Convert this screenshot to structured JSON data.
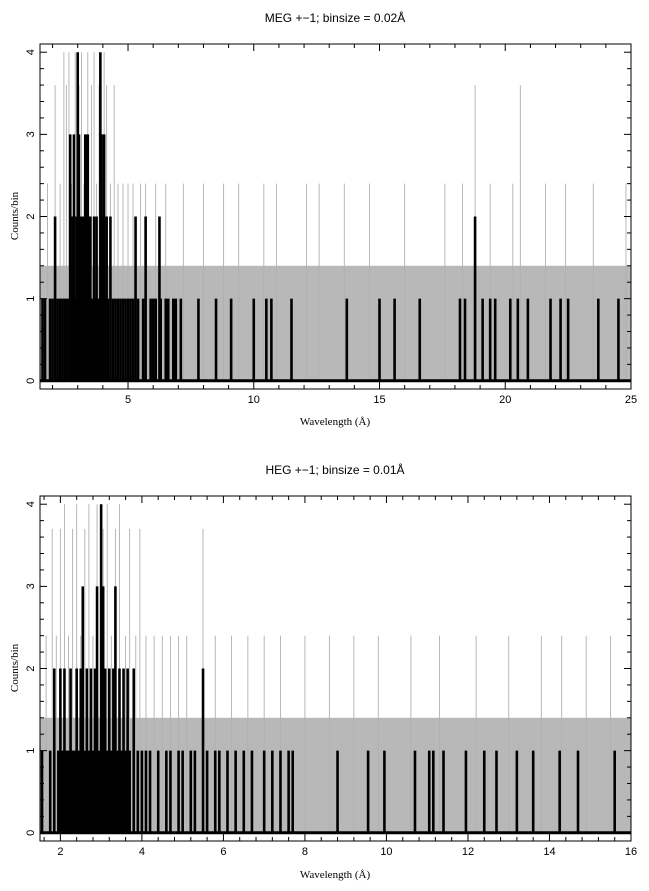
{
  "chart_data": [
    {
      "type": "line",
      "title": "MEG +−1; binsize = 0.02Å",
      "xlabel": "Wavelength (Å)",
      "ylabel": "Counts/bin",
      "xlim": [
        1.5,
        25
      ],
      "ylim": [
        -0.1,
        4.1
      ],
      "x_major_ticks": [
        5,
        10,
        15,
        20,
        25
      ],
      "y_major_ticks": [
        0,
        1,
        2,
        3,
        4
      ],
      "grid": false,
      "band": {
        "y0": 0,
        "y1": 1.4,
        "color": "#b8b8b8"
      },
      "series": [
        {
          "style": "thick-histogram",
          "color": "#000000",
          "spikes": [
            [
              1.6,
              1
            ],
            [
              1.7,
              1
            ],
            [
              1.9,
              1
            ],
            [
              2.0,
              1
            ],
            [
              2.1,
              2
            ],
            [
              2.2,
              1
            ],
            [
              2.3,
              1
            ],
            [
              2.4,
              1
            ],
            [
              2.5,
              1
            ],
            [
              2.6,
              1
            ],
            [
              2.7,
              3
            ],
            [
              2.75,
              1
            ],
            [
              2.8,
              2
            ],
            [
              2.85,
              3
            ],
            [
              2.9,
              1
            ],
            [
              2.95,
              2
            ],
            [
              3.0,
              4
            ],
            [
              3.05,
              3
            ],
            [
              3.1,
              2
            ],
            [
              3.15,
              1
            ],
            [
              3.2,
              2
            ],
            [
              3.25,
              1
            ],
            [
              3.3,
              3
            ],
            [
              3.35,
              2
            ],
            [
              3.4,
              3
            ],
            [
              3.45,
              1
            ],
            [
              3.5,
              2
            ],
            [
              3.55,
              1
            ],
            [
              3.6,
              1
            ],
            [
              3.65,
              2
            ],
            [
              3.7,
              1
            ],
            [
              3.75,
              2
            ],
            [
              3.8,
              1
            ],
            [
              3.85,
              1
            ],
            [
              3.9,
              4
            ],
            [
              3.95,
              3
            ],
            [
              4.0,
              2
            ],
            [
              4.05,
              3
            ],
            [
              4.1,
              1
            ],
            [
              4.15,
              2
            ],
            [
              4.2,
              1
            ],
            [
              4.3,
              2
            ],
            [
              4.4,
              1
            ],
            [
              4.5,
              1
            ],
            [
              4.6,
              1
            ],
            [
              4.7,
              1
            ],
            [
              4.8,
              1
            ],
            [
              4.9,
              1
            ],
            [
              5.0,
              1
            ],
            [
              5.1,
              1
            ],
            [
              5.2,
              1
            ],
            [
              5.3,
              2
            ],
            [
              5.4,
              1
            ],
            [
              5.6,
              1
            ],
            [
              5.7,
              2
            ],
            [
              5.9,
              1
            ],
            [
              6.0,
              1
            ],
            [
              6.1,
              1
            ],
            [
              6.25,
              2
            ],
            [
              6.3,
              1
            ],
            [
              6.5,
              1
            ],
            [
              6.6,
              1
            ],
            [
              6.8,
              1
            ],
            [
              6.9,
              1
            ],
            [
              7.1,
              1
            ],
            [
              7.8,
              1
            ],
            [
              8.5,
              1
            ],
            [
              9.1,
              1
            ],
            [
              10.0,
              1
            ],
            [
              10.5,
              1
            ],
            [
              10.7,
              1
            ],
            [
              11.5,
              1
            ],
            [
              13.7,
              1
            ],
            [
              15.0,
              1
            ],
            [
              15.6,
              1
            ],
            [
              16.6,
              1
            ],
            [
              18.2,
              1
            ],
            [
              18.4,
              1
            ],
            [
              18.8,
              2
            ],
            [
              19.1,
              1
            ],
            [
              19.4,
              1
            ],
            [
              19.6,
              1
            ],
            [
              20.2,
              1
            ],
            [
              20.5,
              1
            ],
            [
              20.9,
              1
            ],
            [
              21.8,
              1
            ],
            [
              22.2,
              1
            ],
            [
              22.5,
              1
            ],
            [
              23.7,
              1
            ],
            [
              24.5,
              1
            ]
          ]
        },
        {
          "style": "thin-model",
          "color": "#b0b0b0",
          "spikes": [
            [
              1.8,
              2.4
            ],
            [
              2.1,
              3.6
            ],
            [
              2.3,
              2.4
            ],
            [
              2.45,
              4
            ],
            [
              2.55,
              3.6
            ],
            [
              2.65,
              4
            ],
            [
              2.75,
              2.4
            ],
            [
              2.9,
              4
            ],
            [
              3.05,
              3.6
            ],
            [
              3.15,
              4
            ],
            [
              3.25,
              2.4
            ],
            [
              3.4,
              4
            ],
            [
              3.55,
              3.6
            ],
            [
              3.65,
              4
            ],
            [
              3.75,
              2.4
            ],
            [
              3.85,
              3.6
            ],
            [
              3.95,
              2.4
            ],
            [
              4.05,
              4
            ],
            [
              4.15,
              3.6
            ],
            [
              4.3,
              2.4
            ],
            [
              4.45,
              3.6
            ],
            [
              4.6,
              2.4
            ],
            [
              4.8,
              2.4
            ],
            [
              5.0,
              2.4
            ],
            [
              5.2,
              2.4
            ],
            [
              5.5,
              2.4
            ],
            [
              5.7,
              2.4
            ],
            [
              6.1,
              2.4
            ],
            [
              6.5,
              2.4
            ],
            [
              7.2,
              2.4
            ],
            [
              8.0,
              2.4
            ],
            [
              8.8,
              2.4
            ],
            [
              9.4,
              2.4
            ],
            [
              10.4,
              2.4
            ],
            [
              10.9,
              2.4
            ],
            [
              12.1,
              2.4
            ],
            [
              12.6,
              2.4
            ],
            [
              13.6,
              2.4
            ],
            [
              14.6,
              2.4
            ],
            [
              16.0,
              2.4
            ],
            [
              17.6,
              2.4
            ],
            [
              18.3,
              2.4
            ],
            [
              18.8,
              3.6
            ],
            [
              19.4,
              2.4
            ],
            [
              20.3,
              2.4
            ],
            [
              20.6,
              3.6
            ],
            [
              21.6,
              2.4
            ],
            [
              22.4,
              2.4
            ],
            [
              23.5,
              2.4
            ],
            [
              24.8,
              2.4
            ]
          ]
        }
      ]
    },
    {
      "type": "line",
      "title": "HEG +−1; binsize = 0.01Å",
      "xlabel": "Wavelength (Å)",
      "ylabel": "Counts/bin",
      "xlim": [
        1.5,
        16
      ],
      "ylim": [
        -0.1,
        4.1
      ],
      "x_major_ticks": [
        2,
        4,
        6,
        8,
        10,
        12,
        14,
        16
      ],
      "y_major_ticks": [
        0,
        1,
        2,
        3,
        4
      ],
      "grid": false,
      "band": {
        "y0": 0,
        "y1": 1.4,
        "color": "#b8b8b8"
      },
      "series": [
        {
          "style": "thick-histogram",
          "color": "#000000",
          "spikes": [
            [
              1.55,
              1
            ],
            [
              1.75,
              1
            ],
            [
              1.85,
              2
            ],
            [
              1.95,
              1
            ],
            [
              2.0,
              2
            ],
            [
              2.05,
              1
            ],
            [
              2.1,
              2
            ],
            [
              2.15,
              1
            ],
            [
              2.2,
              1
            ],
            [
              2.25,
              2
            ],
            [
              2.3,
              1
            ],
            [
              2.35,
              1
            ],
            [
              2.4,
              2
            ],
            [
              2.45,
              1
            ],
            [
              2.5,
              2
            ],
            [
              2.55,
              3
            ],
            [
              2.6,
              1
            ],
            [
              2.65,
              2
            ],
            [
              2.7,
              1
            ],
            [
              2.75,
              2
            ],
            [
              2.8,
              1
            ],
            [
              2.85,
              2
            ],
            [
              2.9,
              3
            ],
            [
              2.95,
              1
            ],
            [
              3.0,
              4
            ],
            [
              3.05,
              3
            ],
            [
              3.1,
              2
            ],
            [
              3.15,
              1
            ],
            [
              3.2,
              2
            ],
            [
              3.25,
              1
            ],
            [
              3.3,
              2
            ],
            [
              3.35,
              3
            ],
            [
              3.4,
              1
            ],
            [
              3.45,
              2
            ],
            [
              3.5,
              1
            ],
            [
              3.55,
              2
            ],
            [
              3.6,
              1
            ],
            [
              3.65,
              2
            ],
            [
              3.7,
              1
            ],
            [
              3.8,
              2
            ],
            [
              3.9,
              1
            ],
            [
              4.0,
              1
            ],
            [
              4.1,
              1
            ],
            [
              4.2,
              1
            ],
            [
              4.4,
              1
            ],
            [
              4.6,
              1
            ],
            [
              4.7,
              1
            ],
            [
              4.9,
              1
            ],
            [
              5.0,
              1
            ],
            [
              5.2,
              1
            ],
            [
              5.3,
              1
            ],
            [
              5.5,
              2
            ],
            [
              5.6,
              1
            ],
            [
              5.8,
              1
            ],
            [
              5.9,
              1
            ],
            [
              6.1,
              1
            ],
            [
              6.3,
              1
            ],
            [
              6.5,
              1
            ],
            [
              6.7,
              1
            ],
            [
              7.0,
              1
            ],
            [
              7.2,
              1
            ],
            [
              7.4,
              1
            ],
            [
              7.6,
              1
            ],
            [
              7.7,
              1
            ],
            [
              8.8,
              1
            ],
            [
              9.55,
              1
            ],
            [
              9.95,
              1
            ],
            [
              10.7,
              1
            ],
            [
              11.05,
              1
            ],
            [
              11.15,
              1
            ],
            [
              11.4,
              1
            ],
            [
              11.95,
              1
            ],
            [
              12.4,
              1
            ],
            [
              12.7,
              1
            ],
            [
              13.2,
              1
            ],
            [
              13.6,
              1
            ],
            [
              14.25,
              1
            ],
            [
              14.7,
              1
            ],
            [
              15.6,
              1
            ]
          ]
        },
        {
          "style": "thin-model",
          "color": "#b0b0b0",
          "spikes": [
            [
              1.65,
              2.4
            ],
            [
              1.8,
              3.7
            ],
            [
              1.9,
              2.4
            ],
            [
              2.0,
              3.7
            ],
            [
              2.1,
              4
            ],
            [
              2.2,
              2.4
            ],
            [
              2.3,
              3.7
            ],
            [
              2.4,
              4
            ],
            [
              2.5,
              2.4
            ],
            [
              2.6,
              3.7
            ],
            [
              2.7,
              4
            ],
            [
              2.8,
              2.4
            ],
            [
              2.9,
              4
            ],
            [
              3.05,
              3.7
            ],
            [
              3.15,
              4
            ],
            [
              3.25,
              2.4
            ],
            [
              3.35,
              3.7
            ],
            [
              3.45,
              4
            ],
            [
              3.6,
              2.4
            ],
            [
              3.7,
              3.7
            ],
            [
              3.85,
              2.4
            ],
            [
              3.95,
              3.7
            ],
            [
              4.1,
              2.4
            ],
            [
              4.3,
              2.4
            ],
            [
              4.5,
              2.4
            ],
            [
              4.7,
              2.4
            ],
            [
              4.9,
              2.4
            ],
            [
              5.1,
              2.4
            ],
            [
              5.5,
              3.7
            ],
            [
              5.8,
              2.4
            ],
            [
              6.2,
              2.4
            ],
            [
              6.6,
              2.4
            ],
            [
              7.0,
              2.4
            ],
            [
              7.4,
              2.4
            ],
            [
              8.0,
              2.4
            ],
            [
              8.6,
              2.4
            ],
            [
              9.2,
              2.4
            ],
            [
              9.8,
              2.4
            ],
            [
              10.6,
              2.4
            ],
            [
              11.3,
              2.4
            ],
            [
              12.2,
              2.4
            ],
            [
              13.0,
              2.4
            ],
            [
              13.8,
              2.4
            ],
            [
              14.3,
              2.4
            ],
            [
              14.9,
              2.4
            ],
            [
              15.5,
              2.4
            ]
          ]
        }
      ]
    }
  ]
}
